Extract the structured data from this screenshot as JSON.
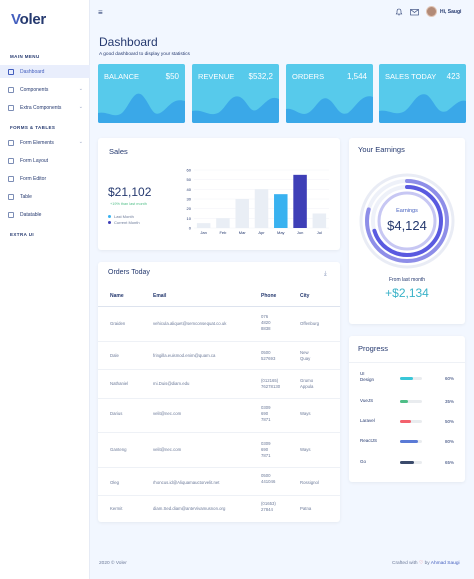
{
  "sidebar": {
    "logo": "Voler",
    "logo_initial": "V",
    "logo_rest": "oler",
    "main_menu_heading": "MAIN MENU",
    "forms_heading": "FORMS & TABLES",
    "extra_heading": "EXTRA UI",
    "items": [
      {
        "label": "Dashboard",
        "active": true
      },
      {
        "label": "Components",
        "has_children": true
      },
      {
        "label": "Extra Components",
        "has_children": true
      },
      {
        "label": "Form Elements",
        "has_children": true
      },
      {
        "label": "Form Layout"
      },
      {
        "label": "Form Editor"
      },
      {
        "label": "Table"
      },
      {
        "label": "Datatable"
      }
    ]
  },
  "topbar": {
    "greeting": "Hi, Saugi"
  },
  "page": {
    "title": "Dashboard",
    "subtitle": "A good dashboard to display your statistics"
  },
  "stats": [
    {
      "label": "BALANCE",
      "value": "$50"
    },
    {
      "label": "REVENUE",
      "value": "$532,2"
    },
    {
      "label": "ORDERS",
      "value": "1,544"
    },
    {
      "label": "SALES TODAY",
      "value": "423"
    }
  ],
  "sales": {
    "title": "Sales",
    "amount": "$21,102",
    "note": "+19% than last month",
    "legend": [
      "Last Month",
      "Current Month"
    ],
    "chart_data": {
      "type": "bar",
      "categories": [
        "Jan",
        "Feb",
        "Mar",
        "Apr",
        "May",
        "Jun",
        "Jul"
      ],
      "values": [
        5,
        10,
        30,
        40,
        35,
        55,
        15
      ],
      "ylim": [
        0,
        60
      ],
      "yticks": [
        "0",
        "10",
        "20",
        "30",
        "40",
        "50",
        "60"
      ],
      "colors": [
        "#e9eef5",
        "#e9eef5",
        "#e9eef5",
        "#e9eef5",
        "#39b2f0",
        "#3e3fb7",
        "#e9eef5"
      ]
    }
  },
  "earnings": {
    "title": "Your Earnings",
    "center_label": "Earnings",
    "center_value": "$4,124",
    "from_label": "From last month",
    "delta": "+$2,134"
  },
  "orders": {
    "title": "Orders Today",
    "columns": [
      "Name",
      "Email",
      "Phone",
      "City"
    ],
    "rows": [
      {
        "name": "Graiden",
        "email": "vehicula.aliquet@semconsequat.co.uk",
        "phone": [
          "076",
          "4820",
          "8838"
        ],
        "city": "Offenburg"
      },
      {
        "name": "Dale",
        "email": "fringilla.euismod.enim@quam.ca",
        "phone": [
          "0500",
          "527693"
        ],
        "city": [
          "New",
          "Quay"
        ]
      },
      {
        "name": "Nathaniel",
        "email": "mi.Duis@diam.edu",
        "phone": [
          "(012165)",
          "76278130"
        ],
        "city": [
          "Grumo",
          "Appula"
        ]
      },
      {
        "name": "Darius",
        "email": "velit@nec.com",
        "phone": [
          "0309",
          "690",
          "7871"
        ],
        "city": "Ways"
      },
      {
        "name": "Ganteng",
        "email": "velit@nec.com",
        "phone": [
          "0309",
          "690",
          "7871"
        ],
        "city": "Ways"
      },
      {
        "name": "Oleg",
        "email": "rhoncus.id@Aliquamauctorvelit.net",
        "phone": [
          "0500",
          "441046"
        ],
        "city": "Rossignol"
      },
      {
        "name": "Kermit",
        "email": "diam.Sed.diam@anteVivamusnon.org",
        "phone": [
          "(01653)",
          "27844"
        ],
        "city": "Patna"
      }
    ]
  },
  "progress": {
    "title": "Progress",
    "items": [
      {
        "label": [
          "UI",
          "Design"
        ],
        "value": 60,
        "pct": "60%",
        "color": "#39c7d8"
      },
      {
        "label": [
          "VueJS"
        ],
        "value": 35,
        "pct": "35%",
        "color": "#4fbe87"
      },
      {
        "label": [
          "Laravel"
        ],
        "value": 50,
        "pct": "50%",
        "color": "#f3616d"
      },
      {
        "label": [
          "ReactJS"
        ],
        "value": 80,
        "pct": "80%",
        "color": "#5a7ad6"
      },
      {
        "label": [
          "Go"
        ],
        "value": 65,
        "pct": "65%",
        "color": "#3a4a6b"
      }
    ]
  },
  "footer": {
    "left": "2020 © Voler",
    "right_pre": "Crafted with",
    "right_by": "by",
    "author": "Ahmad Saugi"
  }
}
